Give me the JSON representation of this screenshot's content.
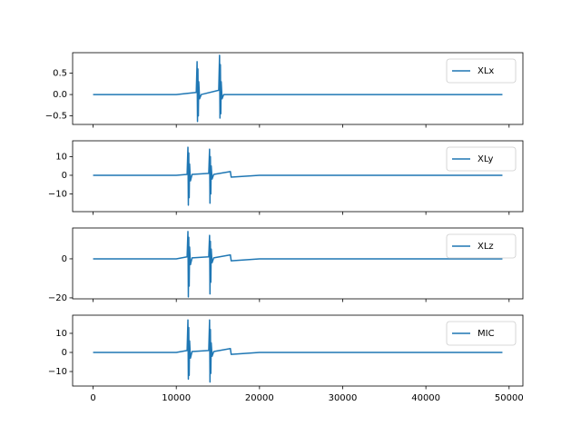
{
  "chart_data": [
    {
      "type": "line",
      "x": [
        0,
        5000,
        10000,
        12400,
        12500,
        12550,
        12600,
        12650,
        12700,
        12800,
        13000,
        15100,
        15200,
        15250,
        15300,
        15350,
        15400,
        15500,
        15700,
        20000,
        30000,
        40000,
        49200
      ],
      "series": [
        {
          "name": "XLx",
          "color": "#1f77b4",
          "values": [
            0,
            0,
            0,
            0.05,
            0.77,
            -0.63,
            0.6,
            -0.5,
            0.3,
            -0.1,
            0,
            0.1,
            0.92,
            -0.55,
            0.7,
            -0.45,
            0.3,
            -0.1,
            0,
            0,
            0,
            0,
            0
          ]
        }
      ],
      "ylim": [
        -0.7,
        0.98
      ],
      "yticks": [
        {
          "value": 0.5,
          "label": "0.5"
        },
        {
          "value": 0,
          "label": "0.0"
        },
        {
          "value": -0.5,
          "label": "−0.5"
        }
      ],
      "legend": "upper right"
    },
    {
      "type": "line",
      "x": [
        0,
        5000,
        10000,
        11300,
        11400,
        11450,
        11500,
        11550,
        11600,
        11700,
        11900,
        13900,
        14000,
        14050,
        14100,
        14150,
        14200,
        14300,
        14500,
        16500,
        16600,
        20000,
        30000,
        40000,
        49200
      ],
      "series": [
        {
          "name": "XLy",
          "color": "#1f77b4",
          "values": [
            0,
            0,
            0,
            0.5,
            15,
            -16,
            12,
            -12,
            6,
            -3,
            0.5,
            1,
            14,
            -15,
            10,
            -10,
            5,
            -2,
            0.5,
            2,
            -1,
            0,
            0,
            0,
            0
          ]
        }
      ],
      "ylim": [
        -19.5,
        18.5
      ],
      "yticks": [
        10,
        0,
        {
          "value": -10,
          "label": "−10"
        }
      ],
      "legend": "upper right"
    },
    {
      "type": "line",
      "x": [
        0,
        5000,
        10000,
        11300,
        11400,
        11450,
        11500,
        11550,
        11600,
        11700,
        11900,
        13900,
        14000,
        14050,
        14100,
        14150,
        14200,
        14300,
        14500,
        16500,
        16600,
        20000,
        30000,
        40000,
        49200
      ],
      "series": [
        {
          "name": "XLz",
          "color": "#1f77b4",
          "values": [
            0,
            0,
            0,
            1,
            14,
            -19.5,
            11,
            -14,
            6,
            -3,
            0.5,
            1,
            12,
            -18,
            9,
            -12,
            5,
            -2,
            0.5,
            2,
            -1,
            0,
            0,
            0,
            0
          ]
        }
      ],
      "ylim": [
        -20.5,
        15.8
      ],
      "yticks": [
        0,
        {
          "value": -20,
          "label": "−20"
        }
      ],
      "legend": "upper right"
    },
    {
      "type": "line",
      "x": [
        0,
        5000,
        10000,
        11300,
        11400,
        11450,
        11500,
        11550,
        11600,
        11700,
        11900,
        13900,
        14000,
        14050,
        14100,
        14150,
        14200,
        14300,
        14500,
        16500,
        16600,
        20000,
        30000,
        40000,
        49200
      ],
      "series": [
        {
          "name": "MIC",
          "color": "#1f77b4",
          "values": [
            0,
            0,
            0,
            1,
            17,
            -14,
            13,
            -12,
            6,
            -3,
            0.5,
            1,
            17,
            -15.5,
            12,
            -11,
            5,
            -2,
            0.5,
            2,
            -1,
            0,
            0,
            0,
            0
          ]
        }
      ],
      "xlim": [
        -2460,
        51660
      ],
      "xticks": [
        0,
        10000,
        20000,
        30000,
        40000,
        50000
      ],
      "ylim": [
        -17.6,
        19.5
      ],
      "yticks": [
        10,
        0,
        {
          "value": -10,
          "label": "−10"
        }
      ],
      "legend": "upper right"
    }
  ]
}
